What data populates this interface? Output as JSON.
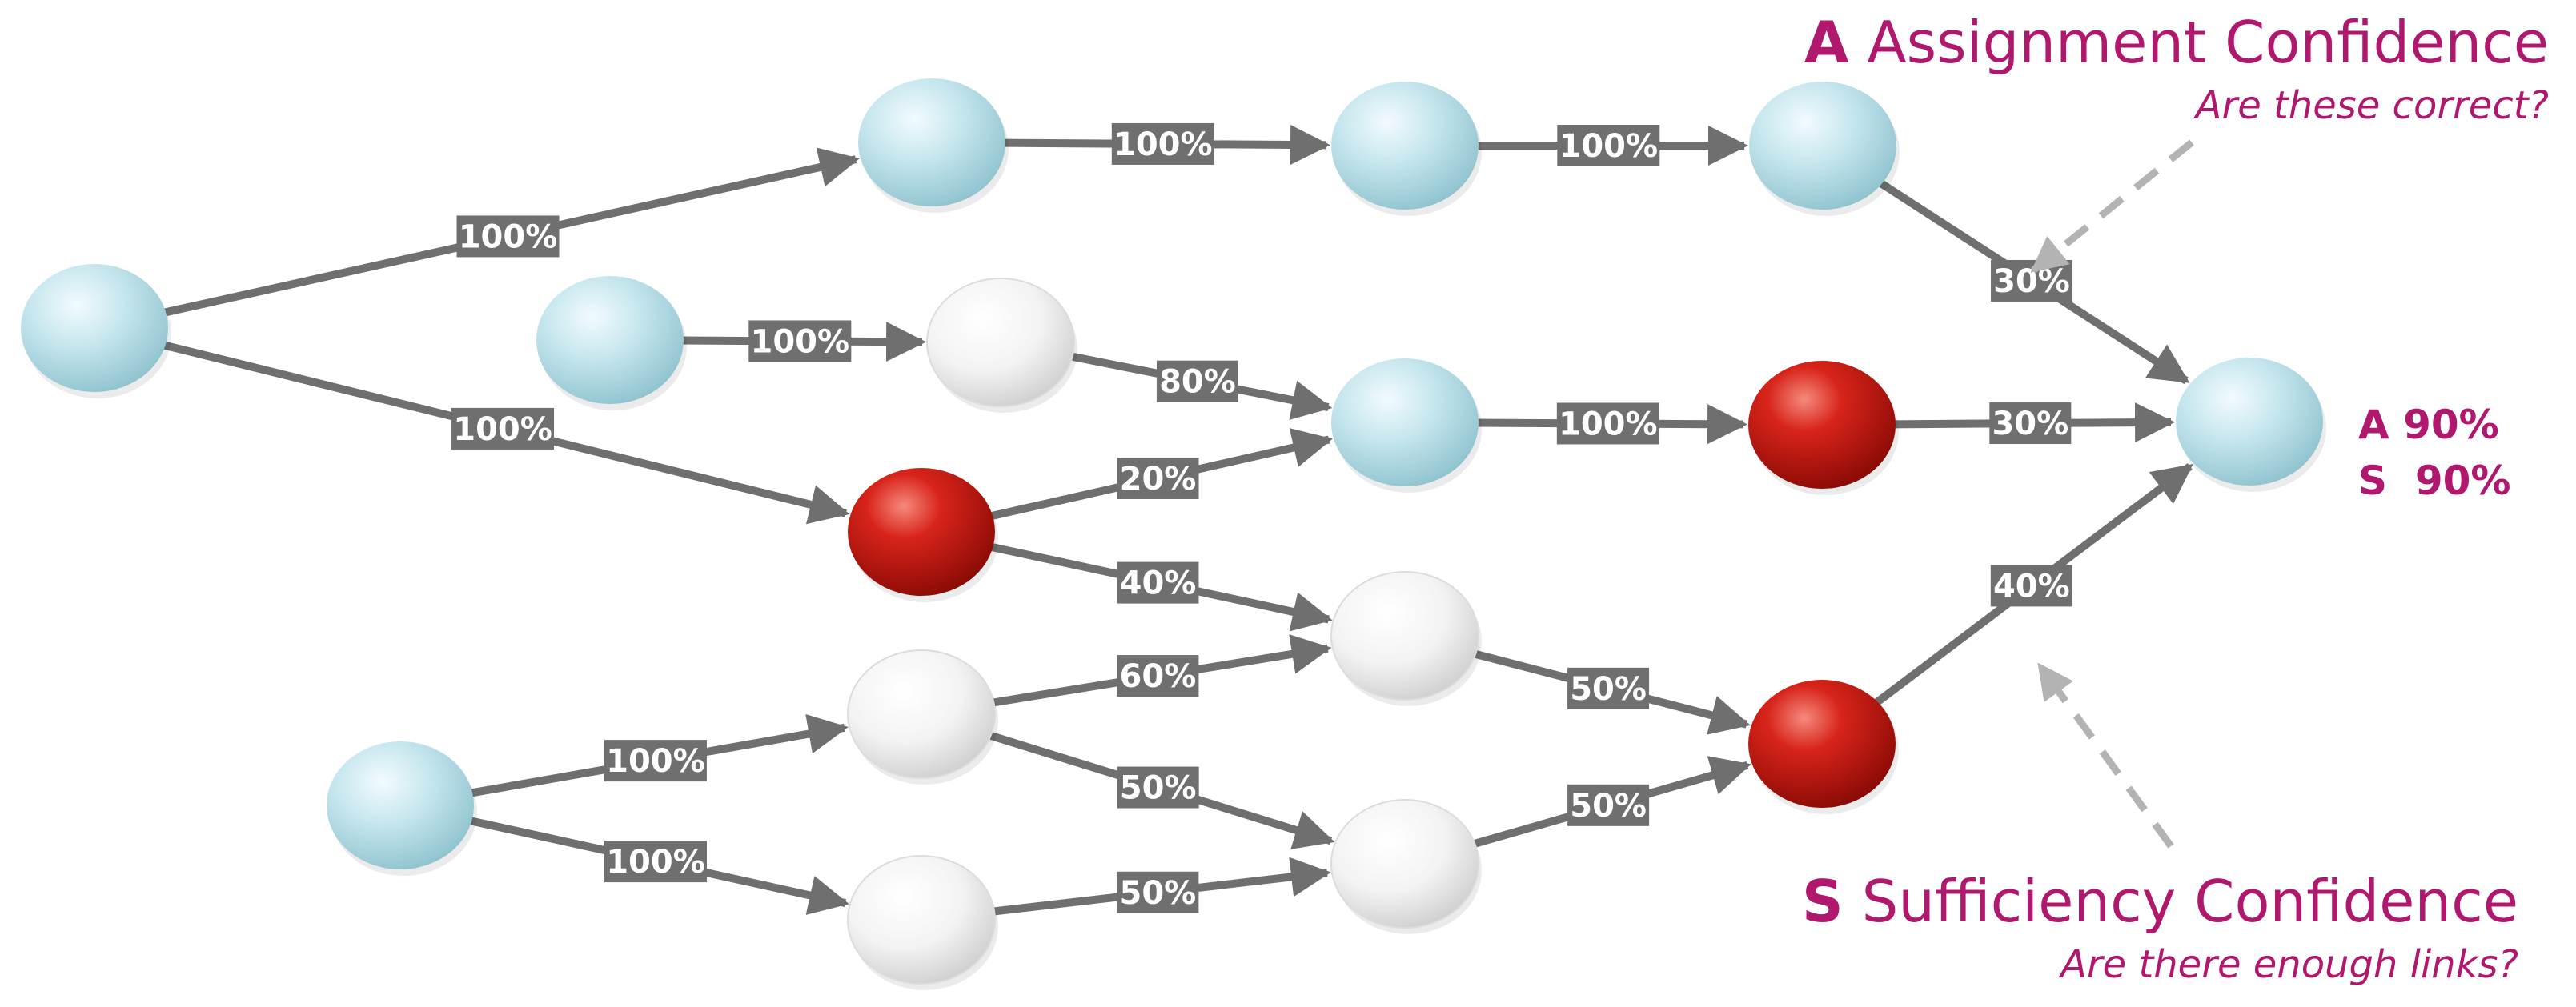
{
  "colors": {
    "edge": "#6f6f6f",
    "edge_label_bg": "#6f6f6f",
    "edge_label_text": "#ffffff",
    "accent": "#b0186e",
    "callout_arrow": "#b3b3b3",
    "node_blue": "#bfe3ec",
    "node_red": "#c9150f",
    "node_white": "#f7f7f7"
  },
  "callouts": {
    "assignment": {
      "letter": "A",
      "title": "Assignment Confidence",
      "subtitle": "Are these correct?"
    },
    "sufficiency": {
      "letter": "S",
      "title": "Sufficiency Confidence",
      "subtitle": "Are there enough links?"
    }
  },
  "metrics": {
    "line1": "A 90%",
    "line2": "S  90%"
  },
  "nodes": [
    {
      "id": "n1",
      "kind": "blue"
    },
    {
      "id": "n2",
      "kind": "blue"
    },
    {
      "id": "n3",
      "kind": "blue"
    },
    {
      "id": "n4",
      "kind": "blue"
    },
    {
      "id": "n5",
      "kind": "blue"
    },
    {
      "id": "n6",
      "kind": "white"
    },
    {
      "id": "n7",
      "kind": "blue"
    },
    {
      "id": "n8",
      "kind": "red"
    },
    {
      "id": "n9",
      "kind": "red"
    },
    {
      "id": "n10",
      "kind": "blue"
    },
    {
      "id": "n11",
      "kind": "white"
    },
    {
      "id": "n12",
      "kind": "blue"
    },
    {
      "id": "n13",
      "kind": "white"
    },
    {
      "id": "n14",
      "kind": "red"
    },
    {
      "id": "n15",
      "kind": "white"
    },
    {
      "id": "n16",
      "kind": "white"
    }
  ],
  "edges": [
    {
      "from": "n1",
      "to": "n2",
      "label": "100%"
    },
    {
      "from": "n2",
      "to": "n3",
      "label": "100%"
    },
    {
      "from": "n3",
      "to": "n4",
      "label": "100%"
    },
    {
      "from": "n4",
      "to": "n10",
      "label": "30%"
    },
    {
      "from": "n1",
      "to": "n9",
      "label": "100%"
    },
    {
      "from": "n5",
      "to": "n6",
      "label": "100%"
    },
    {
      "from": "n6",
      "to": "n7",
      "label": "80%"
    },
    {
      "from": "n9",
      "to": "n7",
      "label": "20%"
    },
    {
      "from": "n7",
      "to": "n8",
      "label": "100%"
    },
    {
      "from": "n8",
      "to": "n10",
      "label": "30%"
    },
    {
      "from": "n9",
      "to": "n11",
      "label": "40%"
    },
    {
      "from": "n13",
      "to": "n11",
      "label": "60%"
    },
    {
      "from": "n11",
      "to": "n14",
      "label": "50%"
    },
    {
      "from": "n15",
      "to": "n14",
      "label": "50%"
    },
    {
      "from": "n14",
      "to": "n10",
      "label": "40%"
    },
    {
      "from": "n12",
      "to": "n13",
      "label": "100%"
    },
    {
      "from": "n12",
      "to": "n16",
      "label": "100%"
    },
    {
      "from": "n13",
      "to": "n15",
      "label": "50%"
    },
    {
      "from": "n16",
      "to": "n15",
      "label": "50%"
    }
  ]
}
